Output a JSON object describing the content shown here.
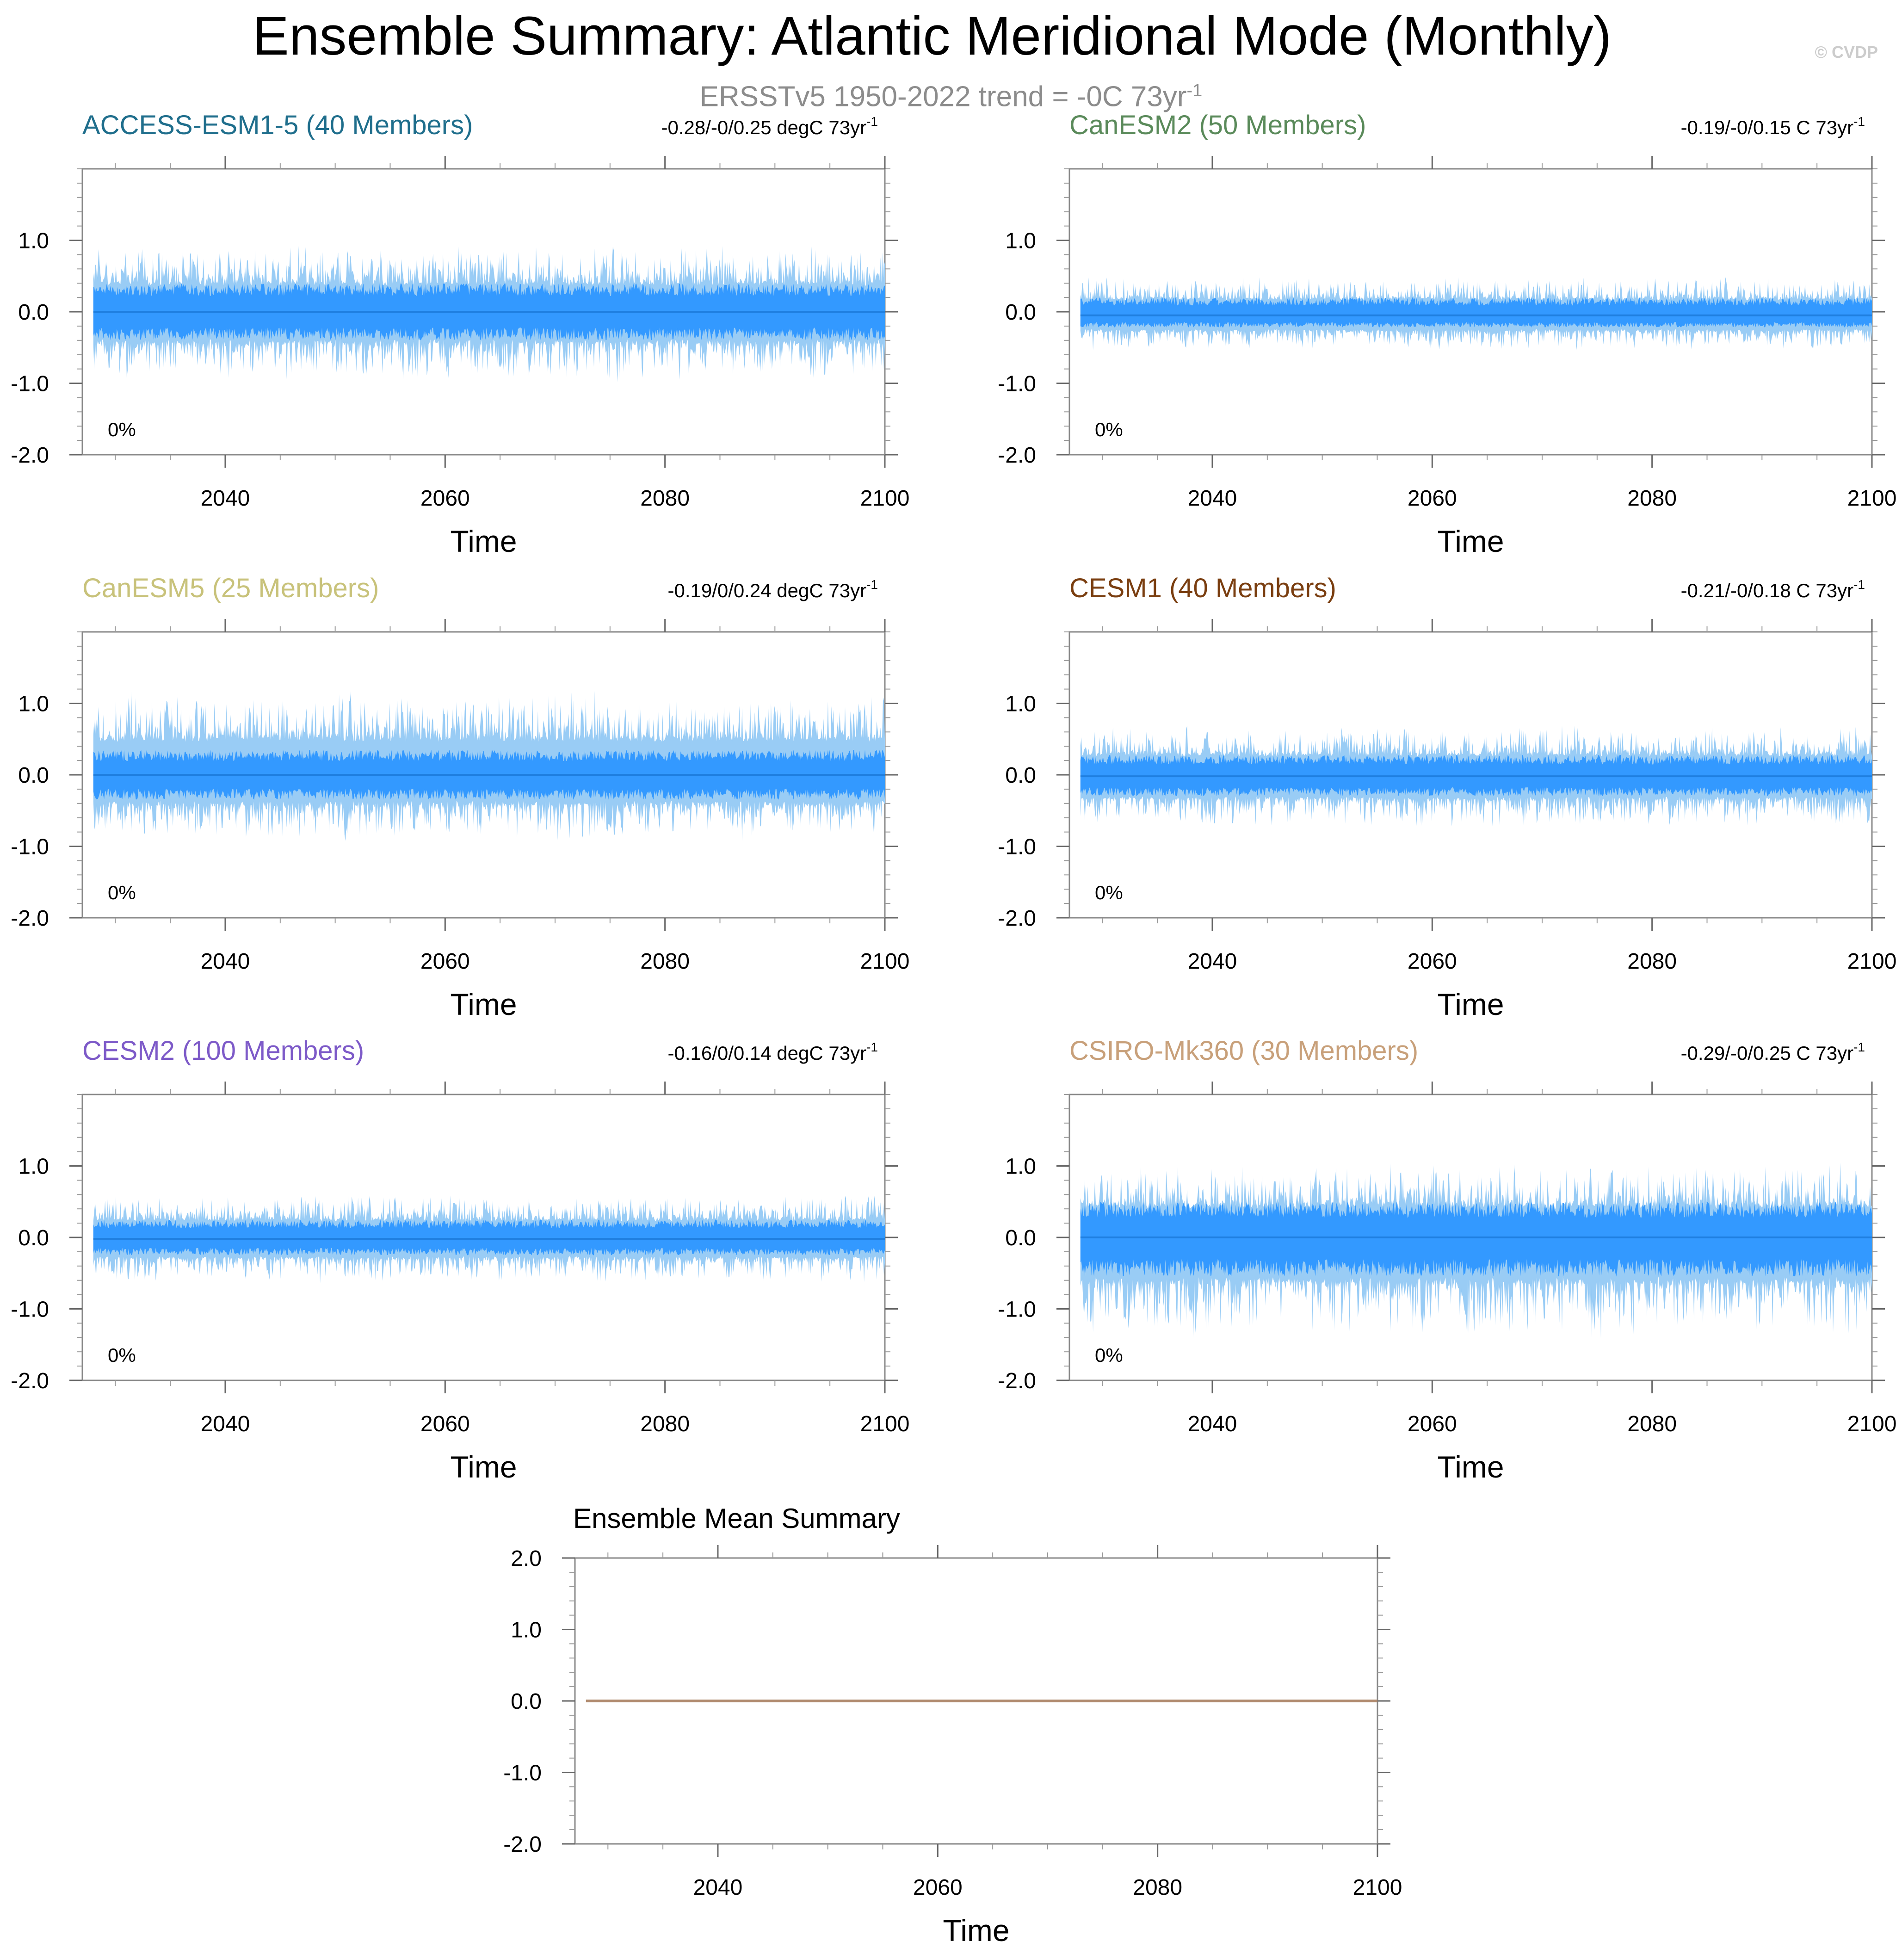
{
  "figure": {
    "title": "Ensemble Summary: Atlantic Meridional Mode (Monthly)",
    "subtitle": "ERSSTv5 1950-2022 trend = -0C 73yr",
    "subtitle_sup": "-1",
    "watermark": "© CVDP"
  },
  "colors": {
    "inner_band": "#3399ff",
    "outer_band": "#99ccf5",
    "mean_line": "#1f7fe0",
    "ensemble_mean_line": "#b08a6e",
    "axis": "#555555",
    "watermark": "#cccccc",
    "subtitle": "#8c8c8c"
  },
  "chart_data": [
    {
      "type": "area",
      "title": "ACCESS-ESM1-5 (40 Members)",
      "title_color": "#1f6e8c",
      "trend": "-0.28/-0/0.25 degC 73yr",
      "trend_sup": "-1",
      "percent": "0%",
      "xlabel": "Time",
      "xlim": [
        2027,
        2100
      ],
      "ylim": [
        -2.0,
        2.0
      ],
      "xticks": [
        2040,
        2060,
        2080,
        2100
      ],
      "yticks": [
        1.0,
        0.0,
        -1.0,
        -2.0
      ],
      "ytick_labels": [
        "1.0",
        "0.0",
        "-1.0",
        "-2.0"
      ],
      "inner_range": [
        -0.4,
        0.4
      ],
      "outer_range": [
        -1.0,
        0.95
      ],
      "mean": 0.0
    },
    {
      "type": "area",
      "title": "CanESM2 (50 Members)",
      "title_color": "#5a8a5a",
      "trend": "-0.19/-0/0.15 C 73yr",
      "trend_sup": "-1",
      "percent": "0%",
      "xlabel": "Time",
      "xlim": [
        2027,
        2100
      ],
      "ylim": [
        -2.0,
        2.0
      ],
      "xticks": [
        2040,
        2060,
        2080,
        2100
      ],
      "yticks": [
        1.0,
        0.0,
        -1.0,
        -2.0
      ],
      "ytick_labels": [
        "1.0",
        "0.0",
        "-1.0",
        "-2.0"
      ],
      "inner_range": [
        -0.22,
        0.2
      ],
      "outer_range": [
        -0.55,
        0.5
      ],
      "mean": -0.05
    },
    {
      "type": "area",
      "title": "CanESM5 (25 Members)",
      "title_color": "#c8c27a",
      "trend": "-0.19/0/0.24 degC 73yr",
      "trend_sup": "-1",
      "percent": "0%",
      "xlabel": "Time",
      "xlim": [
        2027,
        2100
      ],
      "ylim": [
        -2.0,
        2.0
      ],
      "xticks": [
        2040,
        2060,
        2080,
        2100
      ],
      "yticks": [
        1.0,
        0.0,
        -1.0,
        -2.0
      ],
      "ytick_labels": [
        "1.0",
        "0.0",
        "-1.0",
        "-2.0"
      ],
      "inner_range": [
        -0.35,
        0.35
      ],
      "outer_range": [
        -0.95,
        1.2
      ],
      "mean": 0.0
    },
    {
      "type": "area",
      "title": "CESM1 (40 Members)",
      "title_color": "#7a3e10",
      "trend": "-0.21/-0/0.18 C 73yr",
      "trend_sup": "-1",
      "percent": "0%",
      "xlabel": "Time",
      "xlim": [
        2027,
        2100
      ],
      "ylim": [
        -2.0,
        2.0
      ],
      "xticks": [
        2040,
        2060,
        2080,
        2100
      ],
      "yticks": [
        1.0,
        0.0,
        -1.0,
        -2.0
      ],
      "ytick_labels": [
        "1.0",
        "0.0",
        "-1.0",
        "-2.0"
      ],
      "inner_range": [
        -0.3,
        0.28
      ],
      "outer_range": [
        -0.75,
        0.7
      ],
      "mean": -0.02
    },
    {
      "type": "area",
      "title": "CESM2 (100 Members)",
      "title_color": "#7d5ac8",
      "trend": "-0.16/0/0.14 degC 73yr",
      "trend_sup": "-1",
      "percent": "0%",
      "xlabel": "Time",
      "xlim": [
        2027,
        2100
      ],
      "ylim": [
        -2.0,
        2.0
      ],
      "xticks": [
        2040,
        2060,
        2080,
        2100
      ],
      "yticks": [
        1.0,
        0.0,
        -1.0,
        -2.0
      ],
      "ytick_labels": [
        "1.0",
        "0.0",
        "-1.0",
        "-2.0"
      ],
      "inner_range": [
        -0.25,
        0.25
      ],
      "outer_range": [
        -0.65,
        0.62
      ],
      "mean": -0.02
    },
    {
      "type": "area",
      "title": "CSIRO-Mk360 (30 Members)",
      "title_color": "#c8a07a",
      "trend": "-0.29/-0/0.25 C 73yr",
      "trend_sup": "-1",
      "percent": "0%",
      "xlabel": "Time",
      "xlim": [
        2027,
        2100
      ],
      "ylim": [
        -2.0,
        2.0
      ],
      "xticks": [
        2040,
        2060,
        2080,
        2100
      ],
      "yticks": [
        1.0,
        0.0,
        -1.0,
        -2.0
      ],
      "ytick_labels": [
        "1.0",
        "0.0",
        "-1.0",
        "-2.0"
      ],
      "inner_range": [
        -0.55,
        0.5
      ],
      "outer_range": [
        -1.45,
        1.05
      ],
      "mean": 0.0
    },
    {
      "type": "line",
      "title": "Ensemble Mean Summary",
      "title_color": "#000000",
      "xlabel": "Time",
      "xlim": [
        2027,
        2100
      ],
      "ylim": [
        -2.0,
        2.0
      ],
      "xticks": [
        2040,
        2060,
        2080,
        2100
      ],
      "yticks": [
        2.0,
        1.0,
        0.0,
        -1.0,
        -2.0
      ],
      "ytick_labels": [
        "2.0",
        "1.0",
        "0.0",
        "-1.0",
        "-2.0"
      ],
      "x": [
        2027,
        2100
      ],
      "y": [
        0.0,
        0.0
      ]
    }
  ]
}
